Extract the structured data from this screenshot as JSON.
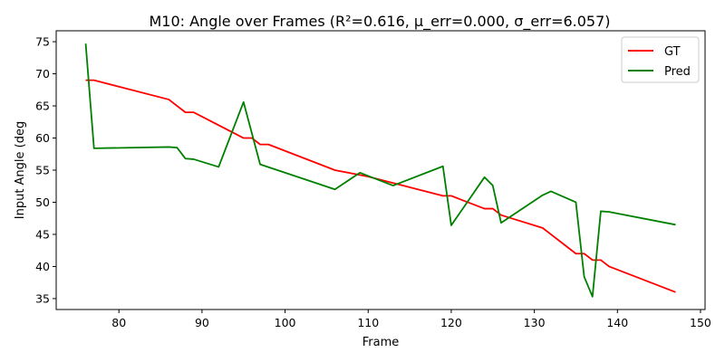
{
  "chart_data": {
    "type": "line",
    "title": "M10: Angle over Frames (R²=0.616, μ_err=0.000, σ_err=6.057)",
    "xlabel": "Frame",
    "ylabel": "Input Angle (deg",
    "xlim": [
      72.45,
      150.55
    ],
    "ylim": [
      33.3,
      76.7
    ],
    "xticks": [
      80,
      90,
      100,
      110,
      120,
      130,
      140,
      150
    ],
    "yticks": [
      35,
      40,
      45,
      50,
      55,
      60,
      65,
      70,
      75
    ],
    "grid": false,
    "legend_position": "upper right",
    "series": [
      {
        "name": "GT",
        "color": "#ff0000",
        "x": [
          76,
          77,
          86,
          88,
          89,
          95,
          96,
          97,
          98,
          106,
          110,
          119,
          120,
          124,
          125,
          126,
          131,
          135,
          136,
          137,
          138,
          139,
          147
        ],
        "y": [
          69,
          69,
          66,
          64,
          64,
          60,
          60,
          59,
          59,
          55,
          54,
          51,
          51,
          49,
          49,
          48,
          46,
          42,
          42,
          41,
          41,
          40,
          36
        ]
      },
      {
        "name": "Pred",
        "color": "#008000",
        "x": [
          76,
          77,
          86,
          87,
          88,
          89,
          92,
          95,
          97,
          106,
          109,
          113,
          119,
          120,
          124,
          125,
          126,
          131,
          132,
          135,
          136,
          137,
          138,
          139,
          147
        ],
        "y": [
          74.7,
          58.4,
          58.6,
          58.5,
          56.8,
          56.7,
          55.5,
          65.6,
          55.9,
          52.0,
          54.6,
          52.6,
          55.6,
          46.4,
          53.9,
          52.6,
          46.8,
          51.1,
          51.7,
          50.0,
          38.4,
          35.3,
          48.6,
          48.5,
          46.5
        ]
      }
    ]
  }
}
